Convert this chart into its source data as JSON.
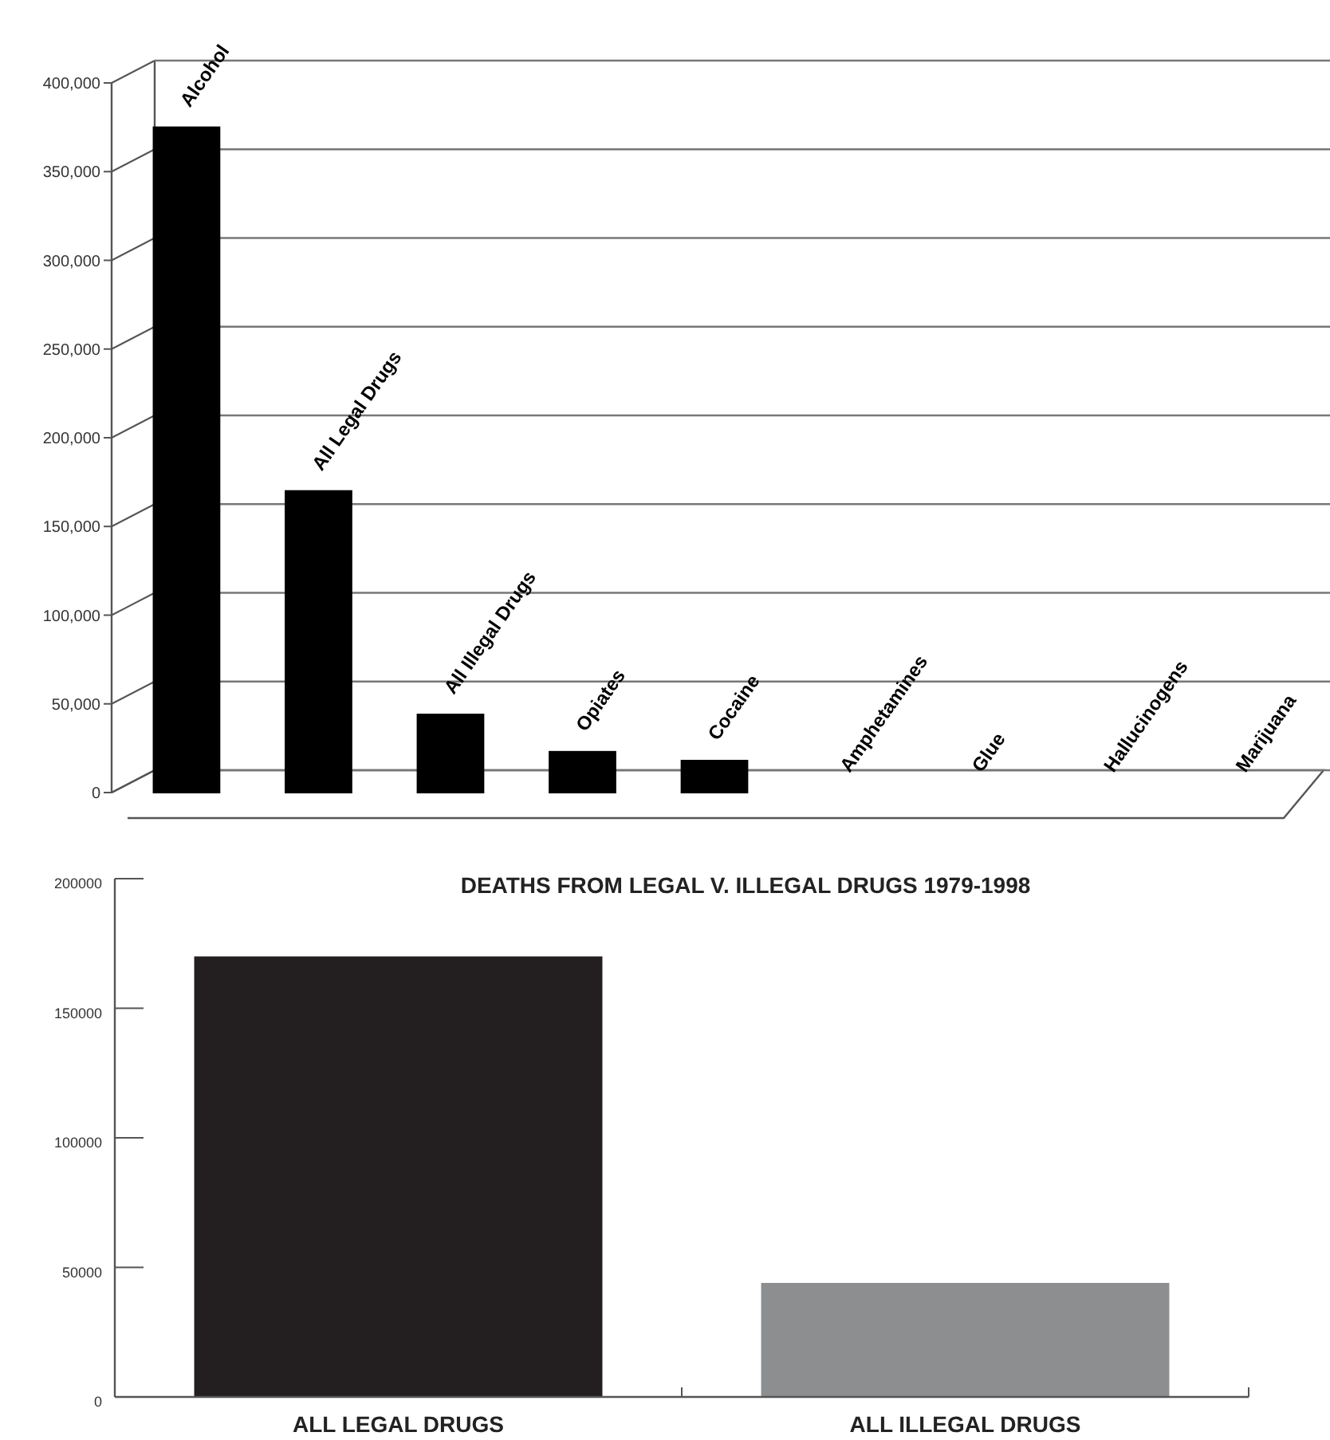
{
  "chart_data": [
    {
      "type": "bar",
      "categories": [
        "Alcohol",
        "All Legal Drugs",
        "All Illegal Drugs",
        "Opiates",
        "Cocaine",
        "Amphetamines",
        "Glue",
        "Hallucinogens",
        "Marijuana"
      ],
      "values": [
        375000,
        170000,
        44000,
        23000,
        18000,
        0,
        0,
        0,
        0
      ],
      "colors": [
        "#000000",
        "#000000",
        "#000000",
        "#000000",
        "#000000",
        "#ffffff",
        "#000000",
        "#000000",
        "#000000"
      ],
      "ylim": [
        0,
        400000
      ],
      "yticks": [
        0,
        {
          "value": 50000,
          "label": "50,000"
        },
        {
          "value": 100000,
          "label": "100,000"
        },
        {
          "value": 150000,
          "label": "150,000"
        },
        {
          "value": 200000,
          "label": "200,000"
        },
        {
          "value": 250000,
          "label": "250,000"
        },
        {
          "value": 300000,
          "label": "300,000"
        },
        {
          "value": 350000,
          "label": "350,000"
        },
        {
          "value": 400000,
          "label": "400,000"
        }
      ],
      "grid": "y"
    },
    {
      "type": "bar",
      "title": "DEATHS FROM LEGAL V. ILLEGAL DRUGS 1979-1998",
      "categories": [
        "ALL LEGAL DRUGS",
        "ALL ILLEGAL DRUGS"
      ],
      "values": [
        170000,
        44000
      ],
      "colors": [
        "#231f20",
        "#8c8e90"
      ],
      "ylim": [
        0,
        200000
      ],
      "yticks": [
        0,
        50000,
        100000,
        150000,
        200000
      ]
    }
  ]
}
